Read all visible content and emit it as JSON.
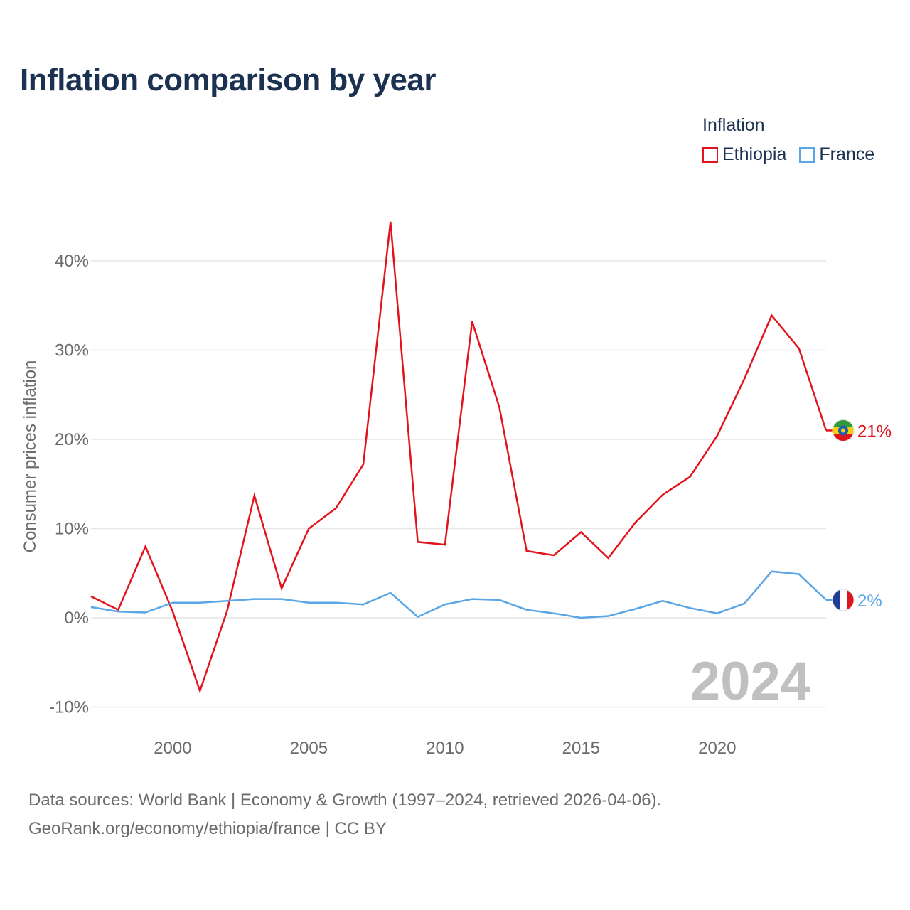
{
  "title": "Inflation comparison by year",
  "legend": {
    "title": "Inflation",
    "items": [
      {
        "label": "Ethiopia",
        "color": "#e3131b"
      },
      {
        "label": "France",
        "color": "#5aa5e6"
      }
    ]
  },
  "year_watermark": "2024",
  "footer": {
    "line1": "Data sources: World Bank | Economy & Growth (1997–2024, retrieved 2026-04-06).",
    "line2": "GeoRank.org/economy/ethiopia/france | CC BY"
  },
  "chart_data": {
    "type": "line",
    "title": "Inflation comparison by year",
    "xlabel": "",
    "ylabel": "Consumer prices inflation",
    "ylim": [
      -10,
      45
    ],
    "xlim": [
      1997,
      2024
    ],
    "x_ticks": [
      2000,
      2005,
      2010,
      2015,
      2020
    ],
    "y_ticks": [
      -10,
      0,
      10,
      20,
      30,
      40
    ],
    "y_tick_labels": [
      "-10%",
      "0%",
      "10%",
      "20%",
      "30%",
      "40%"
    ],
    "grid": true,
    "x": [
      1997,
      1998,
      1999,
      2000,
      2001,
      2002,
      2003,
      2004,
      2005,
      2006,
      2007,
      2008,
      2009,
      2010,
      2011,
      2012,
      2013,
      2014,
      2015,
      2016,
      2017,
      2018,
      2019,
      2020,
      2021,
      2022,
      2023,
      2024
    ],
    "series": [
      {
        "name": "Ethiopia",
        "color": "#e3131b",
        "end_label": "21%",
        "flag": "ethiopia-flag",
        "values": [
          2.4,
          0.9,
          8.0,
          0.7,
          -8.2,
          0.8,
          13.7,
          3.3,
          10.0,
          12.3,
          17.2,
          44.4,
          8.5,
          8.2,
          33.2,
          23.6,
          7.5,
          7.0,
          9.6,
          6.7,
          10.7,
          13.8,
          15.8,
          20.4,
          26.8,
          33.9,
          30.2,
          21.0
        ]
      },
      {
        "name": "France",
        "color": "#5aa5e6",
        "end_label": "2%",
        "flag": "france-flag",
        "values": [
          1.2,
          0.7,
          0.6,
          1.7,
          1.7,
          1.9,
          2.1,
          2.1,
          1.7,
          1.7,
          1.5,
          2.8,
          0.1,
          1.5,
          2.1,
          2.0,
          0.9,
          0.5,
          0.0,
          0.2,
          1.0,
          1.9,
          1.1,
          0.5,
          1.6,
          5.2,
          4.9,
          2.0
        ]
      }
    ]
  }
}
